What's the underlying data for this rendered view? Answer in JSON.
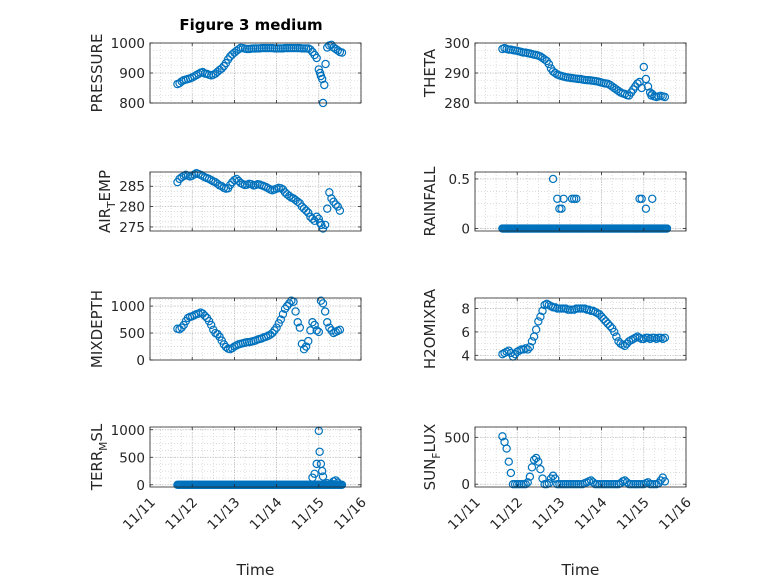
{
  "figure_title": "Figure 3 medium",
  "colors": {
    "marker": "#0072BD",
    "axis": "#262626",
    "grid": "#c8c8c8",
    "background": "#ffffff"
  },
  "chart_data": [
    {
      "type": "scatter",
      "id": "pressure",
      "ylabel": "PRESSURE",
      "ylabel_sub": "",
      "xlim": [
        "11/11",
        "11/16"
      ],
      "xlabel": "",
      "ylim": [
        800,
        1000
      ],
      "yticks": [
        "800",
        "900",
        "1000"
      ],
      "ytick_values": [
        800,
        900,
        1000
      ],
      "xticks": [
        "11/11",
        "11/12",
        "11/13",
        "11/14",
        "11/15",
        "11/16"
      ],
      "xticklabels_shown": false,
      "grid": true,
      "marker": "open-circle",
      "x_day": [
        11.65,
        11.7,
        11.75,
        11.8,
        11.85,
        11.9,
        11.95,
        12.0,
        12.05,
        12.1,
        12.15,
        12.2,
        12.25,
        12.3,
        12.35,
        12.4,
        12.45,
        12.5,
        12.55,
        12.6,
        12.65,
        12.7,
        12.75,
        12.8,
        12.85,
        12.9,
        12.95,
        13.0,
        13.05,
        13.1,
        13.15,
        13.2,
        13.25,
        13.3,
        13.35,
        13.4,
        13.45,
        13.5,
        13.55,
        13.6,
        13.65,
        13.7,
        13.75,
        13.8,
        13.85,
        13.9,
        13.95,
        14.0,
        14.05,
        14.1,
        14.15,
        14.2,
        14.25,
        14.3,
        14.35,
        14.4,
        14.45,
        14.5,
        14.55,
        14.6,
        14.65,
        14.7,
        14.75,
        14.8,
        14.85,
        14.9,
        14.95,
        15.0,
        15.03,
        15.05,
        15.08,
        15.1,
        15.13,
        15.16,
        15.2,
        15.25,
        15.3,
        15.35,
        15.4,
        15.45,
        15.5,
        15.55
      ],
      "y": [
        863,
        866,
        872,
        876,
        878,
        880,
        882,
        885,
        889,
        893,
        897,
        901,
        903,
        898,
        897,
        894,
        892,
        894,
        898,
        904,
        910,
        915,
        923,
        933,
        945,
        955,
        962,
        968,
        974,
        979,
        984,
        983,
        981,
        980,
        980,
        981,
        982,
        982,
        982,
        982,
        983,
        983,
        983,
        983,
        983,
        983,
        982,
        982,
        982,
        982,
        982,
        983,
        983,
        983,
        983,
        983,
        983,
        983,
        983,
        982,
        982,
        982,
        982,
        978,
        970,
        960,
        950,
        912,
        900,
        890,
        880,
        800,
        860,
        930,
        985,
        992,
        994,
        985,
        980,
        975,
        970,
        968
      ]
    },
    {
      "type": "scatter",
      "id": "theta",
      "ylabel": "THETA",
      "ylabel_sub": "",
      "xlim": [
        "11/11",
        "11/16"
      ],
      "xlabel": "",
      "ylim": [
        280,
        300
      ],
      "yticks": [
        "280",
        "290",
        "300"
      ],
      "ytick_values": [
        280,
        290,
        300
      ],
      "xticks": [
        "11/11",
        "11/12",
        "11/13",
        "11/14",
        "11/15",
        "11/16"
      ],
      "xticklabels_shown": false,
      "grid": true,
      "marker": "open-circle",
      "x_day": [
        11.65,
        11.7,
        11.75,
        11.8,
        11.85,
        11.9,
        11.95,
        12.0,
        12.05,
        12.1,
        12.15,
        12.2,
        12.25,
        12.3,
        12.35,
        12.4,
        12.45,
        12.5,
        12.55,
        12.6,
        12.65,
        12.7,
        12.75,
        12.8,
        12.85,
        12.9,
        12.95,
        13.0,
        13.05,
        13.1,
        13.15,
        13.2,
        13.25,
        13.3,
        13.35,
        13.4,
        13.45,
        13.5,
        13.55,
        13.6,
        13.65,
        13.7,
        13.75,
        13.8,
        13.85,
        13.9,
        13.95,
        14.0,
        14.05,
        14.1,
        14.15,
        14.2,
        14.25,
        14.3,
        14.35,
        14.4,
        14.45,
        14.5,
        14.55,
        14.6,
        14.65,
        14.7,
        14.75,
        14.8,
        14.85,
        14.9,
        14.95,
        15.0,
        15.05,
        15.1,
        15.15,
        15.18,
        15.2,
        15.25,
        15.3,
        15.35,
        15.4,
        15.45,
        15.5
      ],
      "y": [
        298,
        298.3,
        298,
        297.8,
        297.8,
        297.6,
        297.5,
        297.4,
        297.2,
        297,
        296.8,
        296.8,
        296.6,
        296.5,
        296.3,
        296.1,
        296,
        295.8,
        295.5,
        295,
        294.5,
        294,
        293,
        291.5,
        290.5,
        290,
        289.5,
        289.2,
        289,
        288.8,
        288.6,
        288.5,
        288.4,
        288.3,
        288.2,
        288.1,
        288,
        288,
        287.8,
        287.7,
        287.6,
        287.6,
        287.5,
        287.4,
        287.3,
        287.2,
        287,
        286.8,
        286.6,
        286.5,
        286.4,
        286,
        285.5,
        285,
        284.5,
        284,
        283.5,
        283.2,
        283,
        282.6,
        282.5,
        283.5,
        284.5,
        285.5,
        286.5,
        287,
        285,
        292,
        288,
        285.5,
        283.5,
        282.5,
        283,
        282.2,
        282,
        282.2,
        282.4,
        282.2,
        282
      ]
    },
    {
      "type": "scatter",
      "id": "air_temp",
      "ylabel": "AIR",
      "ylabel_sub": "T",
      "ylabel_tail": "EMP",
      "xlim": [
        "11/11",
        "11/16"
      ],
      "xlabel": "",
      "ylim": [
        274,
        288.5
      ],
      "yticks": [
        "275",
        "280",
        "285"
      ],
      "ytick_values": [
        275,
        280,
        285
      ],
      "xticks": [
        "11/11",
        "11/12",
        "11/13",
        "11/14",
        "11/15",
        "11/16"
      ],
      "xticklabels_shown": false,
      "grid": true,
      "marker": "open-circle",
      "x_day": [
        11.65,
        11.7,
        11.75,
        11.8,
        11.85,
        11.9,
        11.95,
        12.0,
        12.05,
        12.1,
        12.15,
        12.2,
        12.25,
        12.3,
        12.35,
        12.4,
        12.45,
        12.5,
        12.55,
        12.6,
        12.65,
        12.7,
        12.75,
        12.8,
        12.85,
        12.9,
        12.95,
        13.0,
        13.05,
        13.1,
        13.15,
        13.2,
        13.25,
        13.3,
        13.35,
        13.4,
        13.45,
        13.5,
        13.55,
        13.6,
        13.65,
        13.7,
        13.75,
        13.8,
        13.85,
        13.9,
        13.95,
        14.0,
        14.05,
        14.1,
        14.15,
        14.2,
        14.25,
        14.3,
        14.35,
        14.4,
        14.45,
        14.5,
        14.55,
        14.6,
        14.65,
        14.7,
        14.75,
        14.8,
        14.85,
        14.9,
        14.95,
        15.0,
        15.03,
        15.06,
        15.1,
        15.15,
        15.2,
        15.25,
        15.3,
        15.35,
        15.4,
        15.45,
        15.5
      ],
      "y": [
        286,
        286.8,
        287.2,
        287.5,
        287.8,
        287.6,
        287.4,
        287.6,
        287.9,
        288.2,
        288,
        287.8,
        287.5,
        287.2,
        287,
        286.8,
        286.5,
        286.2,
        286,
        285.6,
        285.2,
        285,
        284.6,
        284.4,
        284.5,
        285.3,
        286,
        286.5,
        286.8,
        286.3,
        285.8,
        285.5,
        285.3,
        285.4,
        285.6,
        285.5,
        285.2,
        285.3,
        285.5,
        285.4,
        285.2,
        285,
        284.8,
        284.5,
        284.2,
        284,
        284.2,
        284.4,
        284.6,
        284.5,
        284.2,
        283.5,
        283,
        282.6,
        282.2,
        282,
        281.6,
        281.2,
        280.8,
        280,
        279.5,
        279,
        278.5,
        277.5,
        277,
        276.5,
        277.5,
        277,
        276,
        275.5,
        274.6,
        275.5,
        279.5,
        283.5,
        282,
        281.2,
        280.5,
        280,
        279
      ]
    },
    {
      "type": "scatter",
      "id": "rainfall",
      "ylabel": "RAINFALL",
      "ylabel_sub": "",
      "xlim": [
        "11/11",
        "11/16"
      ],
      "xlabel": "",
      "ylim": [
        -0.025,
        0.57
      ],
      "yticks": [
        "0",
        "0.5"
      ],
      "ytick_values": [
        0,
        0.5
      ],
      "xticks": [
        "11/11",
        "11/12",
        "11/13",
        "11/14",
        "11/15",
        "11/16"
      ],
      "xticklabels_shown": false,
      "grid": true,
      "marker": "open-circle",
      "zero_range_day": [
        11.65,
        15.55
      ],
      "zero_step_day": 0.025,
      "x_day": [
        12.85,
        12.95,
        13.0,
        13.05,
        13.1,
        13.3,
        13.35,
        13.4,
        14.9,
        14.95,
        15.05,
        15.2
      ],
      "y": [
        0.5,
        0.3,
        0.2,
        0.2,
        0.3,
        0.3,
        0.3,
        0.3,
        0.3,
        0.3,
        0.2,
        0.3
      ]
    },
    {
      "type": "scatter",
      "id": "mixdepth",
      "ylabel": "MIXDEPTH",
      "ylabel_sub": "",
      "xlim": [
        "11/11",
        "11/16"
      ],
      "xlabel": "",
      "ylim": [
        0,
        1150
      ],
      "yticks": [
        "0",
        "500",
        "1000"
      ],
      "ytick_values": [
        0,
        500,
        1000
      ],
      "xticks": [
        "11/11",
        "11/12",
        "11/13",
        "11/14",
        "11/15",
        "11/16"
      ],
      "xticklabels_shown": false,
      "grid": true,
      "marker": "open-circle",
      "x_day": [
        11.65,
        11.7,
        11.75,
        11.8,
        11.85,
        11.9,
        11.95,
        12.0,
        12.05,
        12.1,
        12.15,
        12.2,
        12.25,
        12.3,
        12.35,
        12.4,
        12.45,
        12.5,
        12.55,
        12.6,
        12.65,
        12.7,
        12.75,
        12.8,
        12.85,
        12.9,
        12.95,
        13.0,
        13.05,
        13.1,
        13.15,
        13.2,
        13.25,
        13.3,
        13.35,
        13.4,
        13.45,
        13.5,
        13.55,
        13.6,
        13.65,
        13.7,
        13.75,
        13.8,
        13.85,
        13.9,
        13.95,
        14.0,
        14.05,
        14.1,
        14.15,
        14.2,
        14.25,
        14.3,
        14.35,
        14.4,
        14.45,
        14.5,
        14.55,
        14.6,
        14.65,
        14.7,
        14.75,
        14.8,
        14.85,
        14.9,
        14.95,
        15.0,
        15.05,
        15.1,
        15.15,
        15.2,
        15.25,
        15.3,
        15.35,
        15.4,
        15.45,
        15.5
      ],
      "y": [
        580,
        570,
        600,
        650,
        720,
        780,
        800,
        810,
        830,
        850,
        860,
        880,
        860,
        820,
        780,
        720,
        650,
        560,
        500,
        480,
        430,
        360,
        290,
        240,
        210,
        200,
        220,
        250,
        270,
        290,
        300,
        310,
        320,
        330,
        330,
        340,
        350,
        360,
        380,
        390,
        400,
        420,
        430,
        450,
        470,
        500,
        550,
        600,
        680,
        750,
        850,
        950,
        1000,
        1050,
        1100,
        1080,
        900,
        700,
        600,
        300,
        200,
        250,
        350,
        550,
        700,
        650,
        550,
        520,
        1100,
        1050,
        900,
        700,
        600,
        550,
        500,
        520,
        540,
        560
      ]
    },
    {
      "type": "scatter",
      "id": "h2omixra",
      "ylabel": "H2OMIXRA",
      "ylabel_sub": "",
      "xlim": [
        "11/11",
        "11/16"
      ],
      "xlabel": "",
      "ylim": [
        3.6,
        8.9
      ],
      "yticks": [
        "4",
        "6",
        "8"
      ],
      "ytick_values": [
        4,
        6,
        8
      ],
      "xticks": [
        "11/11",
        "11/12",
        "11/13",
        "11/14",
        "11/15",
        "11/16"
      ],
      "xticklabels_shown": false,
      "grid": true,
      "marker": "open-circle",
      "x_day": [
        11.65,
        11.7,
        11.75,
        11.8,
        11.85,
        11.9,
        11.95,
        12.0,
        12.05,
        12.1,
        12.15,
        12.2,
        12.25,
        12.3,
        12.35,
        12.4,
        12.45,
        12.5,
        12.55,
        12.6,
        12.65,
        12.7,
        12.75,
        12.8,
        12.85,
        12.9,
        12.95,
        13.0,
        13.05,
        13.1,
        13.15,
        13.2,
        13.25,
        13.3,
        13.35,
        13.4,
        13.45,
        13.5,
        13.55,
        13.6,
        13.65,
        13.7,
        13.75,
        13.8,
        13.85,
        13.9,
        13.95,
        14.0,
        14.05,
        14.1,
        14.15,
        14.2,
        14.25,
        14.3,
        14.35,
        14.4,
        14.45,
        14.5,
        14.55,
        14.6,
        14.65,
        14.7,
        14.75,
        14.8,
        14.85,
        14.9,
        14.95,
        15.0,
        15.05,
        15.1,
        15.15,
        15.2,
        15.25,
        15.3,
        15.35,
        15.4,
        15.45,
        15.5
      ],
      "y": [
        4.1,
        4.2,
        4.3,
        4.4,
        4.2,
        3.9,
        4.1,
        4.3,
        4.4,
        4.5,
        4.5,
        4.6,
        4.5,
        4.7,
        5.2,
        5.6,
        6.2,
        6.9,
        7.3,
        7.8,
        8.3,
        8.4,
        8.3,
        8.2,
        8.1,
        8.1,
        8.0,
        8.0,
        8.0,
        8.0,
        8.0,
        7.9,
        7.9,
        7.9,
        7.9,
        8.0,
        8.0,
        8.0,
        8.0,
        8.0,
        7.9,
        7.9,
        7.8,
        7.8,
        7.7,
        7.6,
        7.5,
        7.3,
        7.1,
        6.9,
        6.7,
        6.5,
        6.3,
        6.0,
        5.6,
        5.2,
        5.0,
        4.9,
        4.8,
        5.0,
        5.2,
        5.3,
        5.4,
        5.5,
        5.6,
        5.5,
        5.4,
        5.4,
        5.5,
        5.5,
        5.4,
        5.5,
        5.5,
        5.4,
        5.5,
        5.5,
        5.4,
        5.5
      ]
    },
    {
      "type": "scatter",
      "id": "terr_msl",
      "ylabel": "TERR",
      "ylabel_sub": "M",
      "ylabel_tail": "SL",
      "xlim": [
        "11/11",
        "11/16"
      ],
      "xlabel": "Time",
      "ylim": [
        -40,
        1050
      ],
      "yticks": [
        "0",
        "500",
        "1000"
      ],
      "ytick_values": [
        0,
        500,
        1000
      ],
      "xticks": [
        "11/11",
        "11/12",
        "11/13",
        "11/14",
        "11/15",
        "11/16"
      ],
      "xticklabels_shown": true,
      "grid": true,
      "marker": "open-circle",
      "zero_range_day": [
        11.65,
        15.55
      ],
      "zero_step_day": 0.025,
      "x_day": [
        14.85,
        14.9,
        14.95,
        15.0,
        15.02,
        15.05,
        15.08,
        15.1,
        15.2,
        15.3,
        15.35,
        15.4,
        15.45
      ],
      "y": [
        130,
        200,
        380,
        980,
        600,
        380,
        250,
        150,
        30,
        20,
        60,
        80,
        40
      ]
    },
    {
      "type": "scatter",
      "id": "sun_flux",
      "ylabel": "SUN",
      "ylabel_sub": "F",
      "ylabel_tail": "LUX",
      "xlim": [
        "11/11",
        "11/16"
      ],
      "xlabel": "Time",
      "ylim": [
        -30,
        610
      ],
      "yticks": [
        "0",
        "500"
      ],
      "ytick_values": [
        0,
        500
      ],
      "xticks": [
        "11/11",
        "11/12",
        "11/13",
        "11/14",
        "11/15",
        "11/16"
      ],
      "xticklabels_shown": true,
      "grid": true,
      "marker": "open-circle",
      "x_day": [
        11.65,
        11.7,
        11.75,
        11.8,
        11.85,
        11.9,
        11.95,
        12.0,
        12.05,
        12.1,
        12.15,
        12.2,
        12.25,
        12.3,
        12.35,
        12.4,
        12.45,
        12.5,
        12.55,
        12.6,
        12.65,
        12.7,
        12.75,
        12.8,
        12.85,
        12.9,
        12.95,
        13.0,
        13.05,
        13.1,
        13.15,
        13.2,
        13.25,
        13.3,
        13.35,
        13.4,
        13.45,
        13.5,
        13.55,
        13.6,
        13.65,
        13.7,
        13.75,
        13.8,
        13.85,
        13.9,
        13.95,
        14.0,
        14.05,
        14.1,
        14.15,
        14.2,
        14.25,
        14.3,
        14.35,
        14.4,
        14.45,
        14.5,
        14.55,
        14.6,
        14.65,
        14.7,
        14.75,
        14.8,
        14.85,
        14.9,
        14.95,
        15.0,
        15.05,
        15.1,
        15.15,
        15.2,
        15.25,
        15.3,
        15.35,
        15.4,
        15.45,
        15.5
      ],
      "y": [
        510,
        450,
        380,
        240,
        120,
        0,
        0,
        0,
        0,
        0,
        0,
        0,
        20,
        80,
        180,
        260,
        280,
        240,
        160,
        60,
        0,
        0,
        10,
        60,
        90,
        60,
        0,
        0,
        0,
        0,
        0,
        0,
        0,
        0,
        0,
        0,
        0,
        0,
        0,
        10,
        20,
        30,
        40,
        20,
        0,
        0,
        0,
        0,
        0,
        0,
        0,
        0,
        0,
        0,
        0,
        0,
        10,
        30,
        40,
        20,
        0,
        0,
        0,
        0,
        0,
        0,
        0,
        0,
        10,
        20,
        0,
        0,
        0,
        0,
        10,
        40,
        70,
        30
      ]
    }
  ]
}
